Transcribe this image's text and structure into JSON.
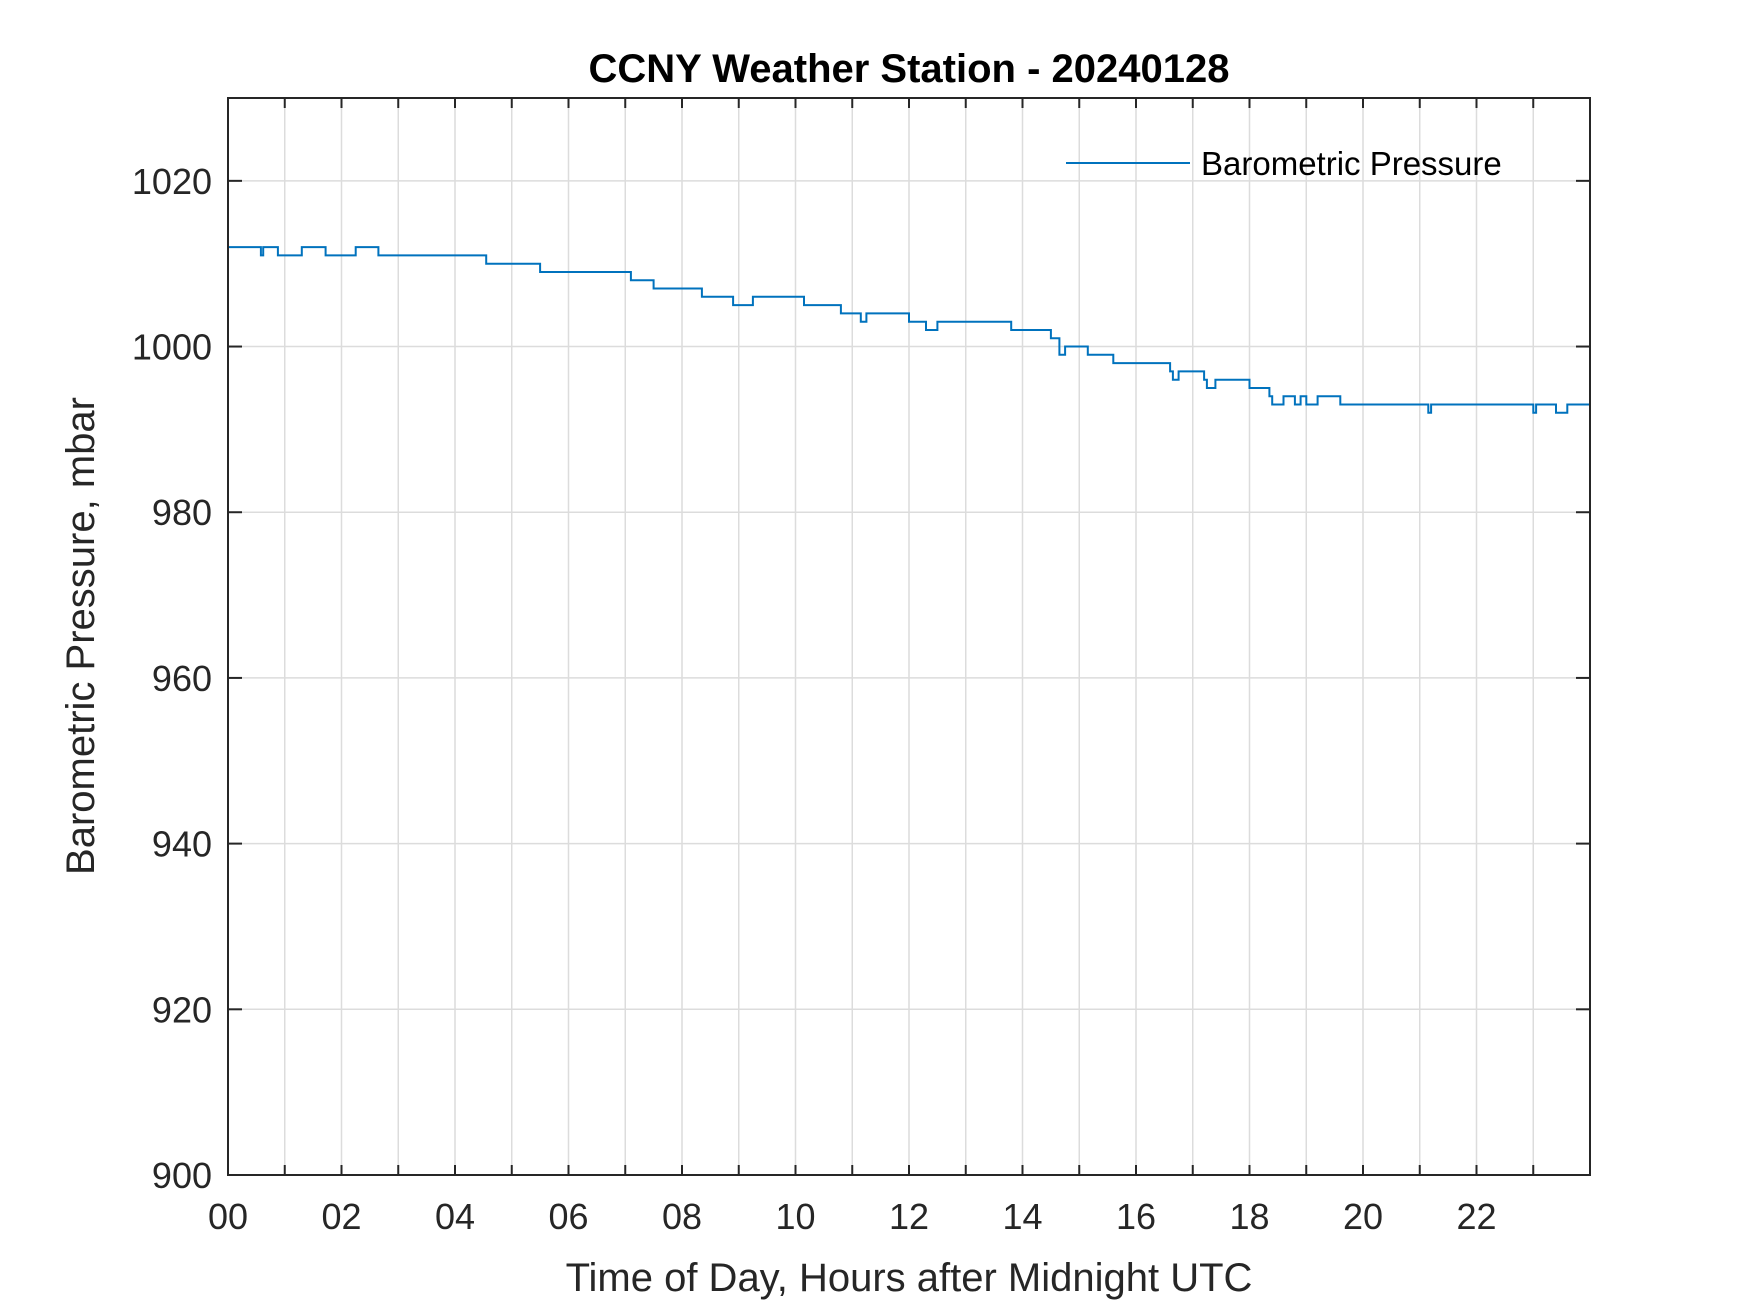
{
  "chart_data": {
    "type": "line",
    "title": "CCNY Weather Station - 20240128",
    "xlabel": "Time of Day, Hours after Midnight UTC",
    "ylabel": "Barometric Pressure, mbar",
    "xlim": [
      0,
      24
    ],
    "ylim": [
      900,
      1030
    ],
    "x_ticks": [
      0,
      2,
      4,
      6,
      8,
      10,
      12,
      14,
      16,
      18,
      20,
      22
    ],
    "x_tick_labels": [
      "00",
      "02",
      "04",
      "06",
      "08",
      "10",
      "12",
      "14",
      "16",
      "18",
      "20",
      "22"
    ],
    "y_ticks": [
      900,
      920,
      940,
      960,
      980,
      1000,
      1020
    ],
    "y_tick_labels": [
      "900",
      "920",
      "940",
      "960",
      "980",
      "1000",
      "1020"
    ],
    "grid": true,
    "legend_position": "top-right",
    "series": [
      {
        "name": "Barometric Pressure",
        "color": "#0072bd",
        "step": true,
        "x": [
          0,
          0.58,
          0.62,
          0.72,
          0.88,
          0.92,
          1.3,
          1.72,
          2.25,
          2.65,
          4.55,
          5.5,
          7.1,
          7.5,
          8.35,
          8.9,
          9.25,
          10.15,
          10.8,
          11.15,
          11.2,
          11.25,
          12.0,
          12.3,
          12.5,
          13.8,
          14.5,
          14.65,
          14.7,
          14.75,
          15.15,
          15.6,
          16.6,
          16.65,
          16.7,
          16.75,
          17.2,
          17.25,
          17.35,
          17.4,
          18.0,
          18.35,
          18.4,
          18.45,
          18.6,
          18.8,
          18.9,
          19.0,
          19.1,
          19.2,
          19.6,
          21.15,
          21.2,
          23.0,
          23.05,
          23.4,
          23.6,
          24.0
        ],
        "y": [
          1012,
          1011,
          1012,
          1012,
          1011,
          1011,
          1012,
          1011,
          1012,
          1011,
          1010,
          1009,
          1008,
          1007,
          1006,
          1005,
          1006,
          1005,
          1004,
          1003,
          1003,
          1004,
          1003,
          1002,
          1003,
          1002,
          1001,
          999,
          999,
          1000,
          999,
          998,
          997,
          996,
          996,
          997,
          996,
          995,
          995,
          996,
          995,
          994,
          993,
          993,
          994,
          993,
          994,
          993,
          993,
          994,
          993,
          992,
          993,
          992,
          993,
          992,
          993,
          993
        ]
      }
    ]
  }
}
